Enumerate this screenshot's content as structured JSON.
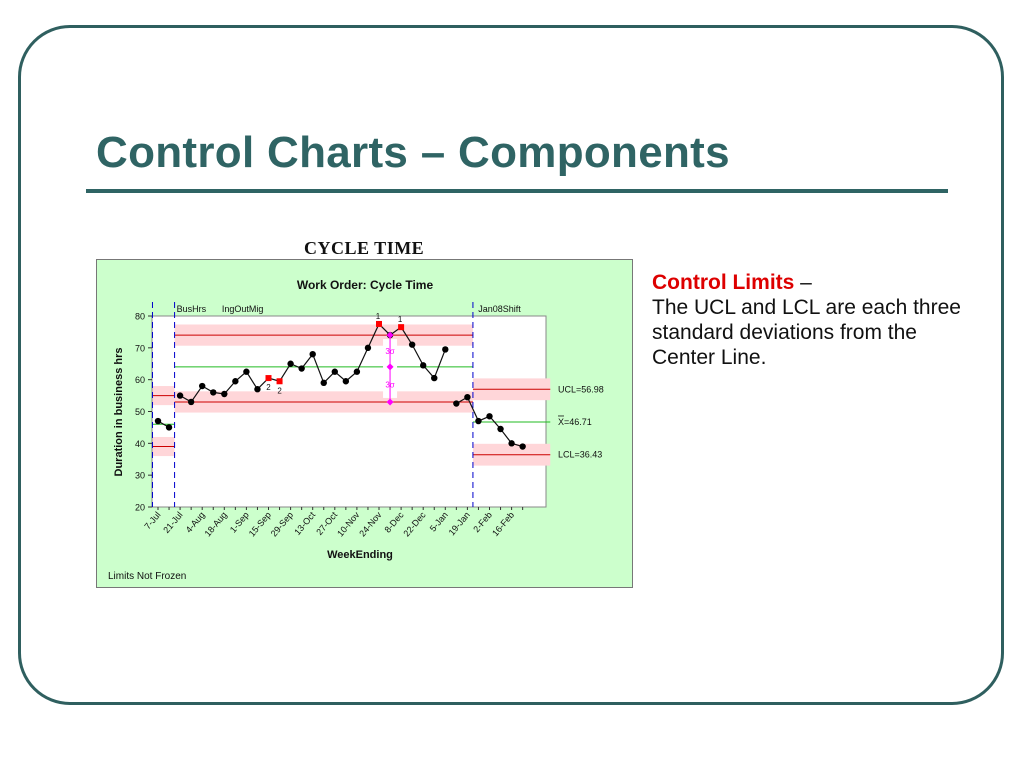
{
  "slide": {
    "title": "Control Charts – Components",
    "chart_caption": "CYCLE TIME"
  },
  "side": {
    "heading": "Control Limits",
    "dash": " –",
    "body": "The UCL and LCL are each three standard deviations from the Center Line."
  },
  "colors": {
    "frame": "#2f5f5f",
    "title": "#2f6464",
    "chart_bg": "#ccffcc",
    "plot_bg": "#ffffff",
    "limit_line": "#cc0000",
    "limit_band": "#ffd6d9",
    "center_line": "#22bb22",
    "data_point": "#000000",
    "out_of_control_point": "#ff0000",
    "sigma_marker": "#ff00ff",
    "phase_divider": "#0000cc",
    "highlight_text": "#dd0000"
  },
  "chart_data": {
    "type": "line",
    "title": "Work Order: Cycle Time",
    "xlabel": "WeekEnding",
    "ylabel": "Duration in business hrs",
    "ylim": [
      20,
      80
    ],
    "yticks": [
      20,
      30,
      40,
      50,
      60,
      70,
      80
    ],
    "x_tick_labels": [
      "7-Jul",
      "21-Jul",
      "4-Aug",
      "18-Aug",
      "1-Sep",
      "15-Sep",
      "29-Sep",
      "13-Oct",
      "27-Oct",
      "10-Nov",
      "24-Nov",
      "8-Dec",
      "22-Dec",
      "5-Jan",
      "19-Jan",
      "2-Feb",
      "16-Feb"
    ],
    "footnote": "Limits Not Frozen",
    "phases": [
      {
        "label": "",
        "start": 0,
        "end": 1,
        "ucl": 55,
        "center": 46,
        "lcl": 39
      },
      {
        "label": "BusHrs",
        "start": 2,
        "end": 28,
        "ucl": 74,
        "center": 64,
        "lcl": 53
      },
      {
        "label": "IngOutMig",
        "start": 2,
        "end": 28,
        "ucl": null,
        "center": null,
        "lcl": null
      },
      {
        "label": "Jan08Shift",
        "start": 29,
        "end": 35,
        "ucl": 56.98,
        "center": 46.71,
        "lcl": 36.43
      }
    ],
    "limit_labels": {
      "ucl": "UCL=56.98",
      "center": "=46.71",
      "center_symbol": "X",
      "lcl": "LCL=36.43"
    },
    "values": [
      47,
      45,
      55,
      53,
      58,
      56,
      55.5,
      59.5,
      62.5,
      57,
      60.5,
      59.5,
      65,
      63.5,
      68,
      59,
      62.5,
      59.5,
      62.5,
      70,
      77.5,
      74,
      76.5,
      71,
      64.5,
      60.5,
      69.5,
      52.5,
      54.5,
      47,
      48.5,
      44.5,
      40,
      39
    ],
    "out_of_control": [
      {
        "index": 10,
        "rule": "2"
      },
      {
        "index": 11,
        "rule": "2"
      },
      {
        "index": 20,
        "rule": "1"
      },
      {
        "index": 22,
        "rule": "1"
      }
    ],
    "sigma_annotation": {
      "label": "3σ",
      "index": 21,
      "upper": 74,
      "center": 64,
      "lower": 53
    }
  }
}
